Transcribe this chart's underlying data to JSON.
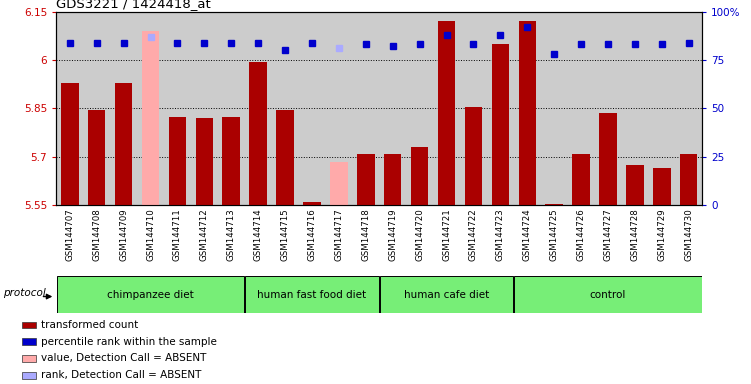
{
  "title": "GDS3221 / 1424418_at",
  "samples": [
    "GSM144707",
    "GSM144708",
    "GSM144709",
    "GSM144710",
    "GSM144711",
    "GSM144712",
    "GSM144713",
    "GSM144714",
    "GSM144715",
    "GSM144716",
    "GSM144717",
    "GSM144718",
    "GSM144719",
    "GSM144720",
    "GSM144721",
    "GSM144722",
    "GSM144723",
    "GSM144724",
    "GSM144725",
    "GSM144726",
    "GSM144727",
    "GSM144728",
    "GSM144729",
    "GSM144730"
  ],
  "bar_values": [
    5.93,
    5.845,
    5.93,
    6.09,
    5.825,
    5.82,
    5.825,
    5.995,
    5.845,
    5.56,
    5.685,
    5.71,
    5.71,
    5.73,
    6.12,
    5.855,
    6.05,
    6.12,
    5.555,
    5.71,
    5.835,
    5.675,
    5.665,
    5.71
  ],
  "bar_absent": [
    false,
    false,
    false,
    true,
    false,
    false,
    false,
    false,
    false,
    false,
    true,
    false,
    false,
    false,
    false,
    false,
    false,
    false,
    false,
    false,
    false,
    false,
    false,
    false
  ],
  "rank_values": [
    84,
    84,
    84,
    87,
    84,
    84,
    84,
    84,
    80,
    84,
    81,
    83,
    82,
    83,
    88,
    83,
    88,
    92,
    78,
    83,
    83,
    83,
    83,
    84
  ],
  "rank_absent": [
    false,
    false,
    false,
    true,
    false,
    false,
    false,
    false,
    false,
    false,
    true,
    false,
    false,
    false,
    false,
    false,
    false,
    false,
    false,
    false,
    false,
    false,
    false,
    false
  ],
  "ylim_left": [
    5.55,
    6.15
  ],
  "ylim_right": [
    0,
    100
  ],
  "yticks_left": [
    5.55,
    5.7,
    5.85,
    6.0,
    6.15
  ],
  "yticks_right": [
    0,
    25,
    50,
    75,
    100
  ],
  "ytick_labels_left": [
    "5.55",
    "5.7",
    "5.85",
    "6",
    "6.15"
  ],
  "ytick_labels_right": [
    "0",
    "25",
    "50",
    "75",
    "100%"
  ],
  "groups": [
    {
      "label": "chimpanzee diet",
      "start": 0,
      "end": 6
    },
    {
      "label": "human fast food diet",
      "start": 7,
      "end": 11
    },
    {
      "label": "human cafe diet",
      "start": 12,
      "end": 16
    },
    {
      "label": "control",
      "start": 17,
      "end": 23
    }
  ],
  "bar_color_normal": "#aa0000",
  "bar_color_absent": "#ffaaaa",
  "rank_color_normal": "#0000cc",
  "rank_color_absent": "#aaaaff",
  "background_color": "#cccccc",
  "bar_base": 5.55,
  "group_color": "#77ee77",
  "group_sep_color": "#ffffff",
  "legend_items": [
    {
      "color": "#aa0000",
      "label": "transformed count"
    },
    {
      "color": "#0000cc",
      "label": "percentile rank within the sample"
    },
    {
      "color": "#ffaaaa",
      "label": "value, Detection Call = ABSENT"
    },
    {
      "color": "#aaaaff",
      "label": "rank, Detection Call = ABSENT"
    }
  ]
}
